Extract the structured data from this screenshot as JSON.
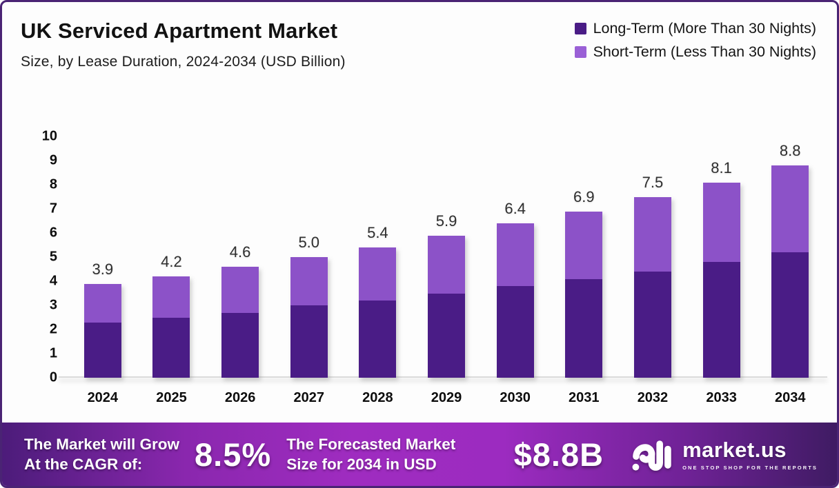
{
  "header": {
    "title": "UK Serviced Apartment Market",
    "subtitle": "Size, by Lease Duration, 2024-2034 (USD Billion)"
  },
  "legend": [
    {
      "label": "Long-Term (More Than 30 Nights)",
      "color": "#4A1C86"
    },
    {
      "label": "Short-Term (Less Than 30 Nights)",
      "color": "#9A60D6"
    }
  ],
  "chart_data": {
    "type": "bar",
    "stacked": true,
    "title": "UK Serviced Apartment Market",
    "subtitle": "Size, by Lease Duration, 2024-2034 (USD Billion)",
    "unit": "USD Billion",
    "categories": [
      "2024",
      "2025",
      "2026",
      "2027",
      "2028",
      "2029",
      "2030",
      "2031",
      "2032",
      "2033",
      "2034"
    ],
    "series": [
      {
        "name": "Long-Term (More Than 30 Nights)",
        "color": "#4A1C86",
        "values": [
          2.3,
          2.5,
          2.7,
          3.0,
          3.2,
          3.5,
          3.8,
          4.1,
          4.4,
          4.8,
          5.2
        ]
      },
      {
        "name": "Short-Term (Less Than 30 Nights)",
        "color": "#8C52C8",
        "values": [
          1.6,
          1.7,
          1.9,
          2.0,
          2.2,
          2.4,
          2.6,
          2.8,
          3.1,
          3.3,
          3.6
        ]
      }
    ],
    "total_labels": [
      "3.9",
      "4.2",
      "4.6",
      "5.0",
      "5.4",
      "5.9",
      "6.4",
      "6.9",
      "7.5",
      "8.1",
      "8.8"
    ],
    "ylim": [
      0,
      10
    ],
    "yticks": [
      0,
      1,
      2,
      3,
      4,
      5,
      6,
      7,
      8,
      9,
      10
    ],
    "grid": false,
    "legend_position": "top-right"
  },
  "footer": {
    "cagr_label_line1": "The Market will Grow",
    "cagr_label_line2": "At the CAGR of:",
    "cagr_value": "8.5%",
    "forecast_label_line1": "The Forecasted Market",
    "forecast_label_line2": "Size for 2034 in USD",
    "forecast_value": "$8.8B",
    "logo_name": "market.us",
    "logo_tagline": "One Stop Shop For The Reports"
  },
  "colors": {
    "border": "#4A2474",
    "background": "#FDFDFD",
    "long_term": "#4A1C86",
    "short_term": "#8C52C8",
    "banner_left": "#4C1C7A",
    "banner_center": "#9F2CC0",
    "banner_right": "#3F1B63"
  }
}
